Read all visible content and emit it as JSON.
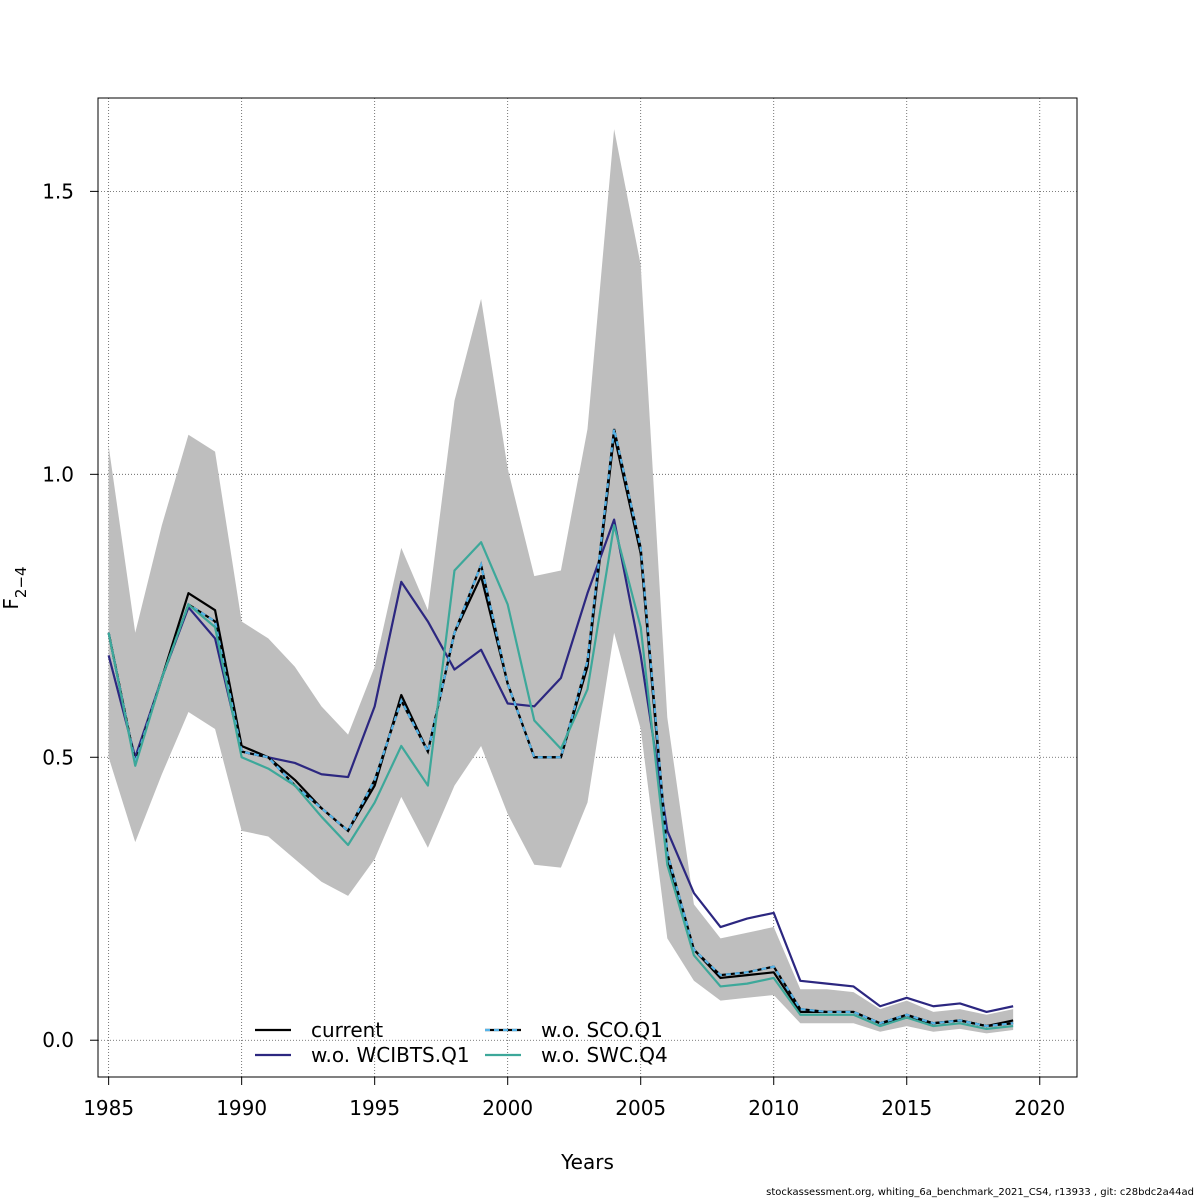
{
  "chart_data": {
    "type": "line",
    "title": "",
    "xlabel": "Years",
    "ylabel": "F",
    "ylabel_subscript": "2−4",
    "xlim": [
      1984.6,
      2021.4
    ],
    "ylim": [
      -0.065,
      1.665
    ],
    "x_ticks": [
      1985,
      1990,
      1995,
      2000,
      2005,
      2010,
      2015,
      2020
    ],
    "y_ticks": [
      0.0,
      0.5,
      1.0,
      1.5
    ],
    "y_tick_labels": [
      "0.0",
      "0.5",
      "1.0",
      "1.5"
    ],
    "grid": true,
    "legend_position": "bottom",
    "x": [
      1985,
      1986,
      1987,
      1988,
      1989,
      1990,
      1991,
      1992,
      1993,
      1994,
      1995,
      1996,
      1997,
      1998,
      1999,
      2000,
      2001,
      2002,
      2003,
      2004,
      2005,
      2006,
      2007,
      2008,
      2009,
      2010,
      2011,
      2012,
      2013,
      2014,
      2015,
      2016,
      2017,
      2018,
      2019
    ],
    "confidence_band": {
      "color": "#bebebe",
      "upper": [
        1.05,
        0.72,
        0.91,
        1.07,
        1.04,
        0.74,
        0.71,
        0.66,
        0.59,
        0.54,
        0.66,
        0.87,
        0.76,
        1.13,
        1.31,
        1.01,
        0.82,
        0.83,
        1.08,
        1.61,
        1.37,
        0.57,
        0.24,
        0.18,
        0.19,
        0.2,
        0.09,
        0.09,
        0.085,
        0.055,
        0.07,
        0.05,
        0.055,
        0.045,
        0.055
      ],
      "lower": [
        0.5,
        0.35,
        0.47,
        0.58,
        0.55,
        0.37,
        0.36,
        0.32,
        0.28,
        0.255,
        0.32,
        0.43,
        0.34,
        0.45,
        0.52,
        0.4,
        0.31,
        0.305,
        0.42,
        0.72,
        0.55,
        0.18,
        0.105,
        0.07,
        0.075,
        0.08,
        0.03,
        0.03,
        0.03,
        0.015,
        0.025,
        0.015,
        0.02,
        0.012,
        0.018
      ]
    },
    "series": [
      {
        "name": "current",
        "color": "#000000",
        "dash": "",
        "values": [
          0.72,
          0.49,
          0.64,
          0.79,
          0.76,
          0.52,
          0.5,
          0.46,
          0.41,
          0.37,
          0.45,
          0.61,
          0.51,
          0.72,
          0.82,
          0.63,
          0.5,
          0.5,
          0.66,
          1.07,
          0.86,
          0.32,
          0.16,
          0.11,
          0.115,
          0.12,
          0.05,
          0.05,
          0.05,
          0.03,
          0.04,
          0.03,
          0.035,
          0.025,
          0.035
        ]
      },
      {
        "name": "w.o. WCIBTS.Q1",
        "color": "#2c2780",
        "dash": "",
        "values": [
          0.68,
          0.5,
          0.64,
          0.765,
          0.71,
          0.51,
          0.5,
          0.49,
          0.47,
          0.465,
          0.59,
          0.81,
          0.74,
          0.655,
          0.69,
          0.595,
          0.59,
          0.64,
          0.79,
          0.92,
          0.68,
          0.37,
          0.26,
          0.2,
          0.215,
          0.225,
          0.105,
          0.1,
          0.095,
          0.06,
          0.075,
          0.06,
          0.065,
          0.05,
          0.06
        ]
      },
      {
        "name": "w.o. SCO.Q1",
        "color": "#56b4e9",
        "dash": "5,4",
        "values": [
          0.72,
          0.49,
          0.64,
          0.77,
          0.74,
          0.51,
          0.5,
          0.45,
          0.41,
          0.37,
          0.46,
          0.6,
          0.51,
          0.72,
          0.84,
          0.63,
          0.5,
          0.5,
          0.67,
          1.08,
          0.87,
          0.33,
          0.16,
          0.115,
          0.12,
          0.13,
          0.055,
          0.05,
          0.05,
          0.03,
          0.045,
          0.03,
          0.035,
          0.025,
          0.03
        ]
      },
      {
        "name": "w.o. SWC.Q4",
        "color": "#3da89a",
        "dash": "",
        "values": [
          0.72,
          0.485,
          0.64,
          0.77,
          0.73,
          0.5,
          0.48,
          0.45,
          0.395,
          0.345,
          0.42,
          0.52,
          0.45,
          0.83,
          0.88,
          0.77,
          0.565,
          0.515,
          0.62,
          0.91,
          0.73,
          0.31,
          0.15,
          0.095,
          0.1,
          0.11,
          0.045,
          0.045,
          0.045,
          0.025,
          0.04,
          0.025,
          0.03,
          0.02,
          0.025
        ]
      }
    ]
  },
  "footer": "stockassessment.org, whiting_6a_benchmark_2021_CS4, r13933 , git: c28bdc2a44ad"
}
